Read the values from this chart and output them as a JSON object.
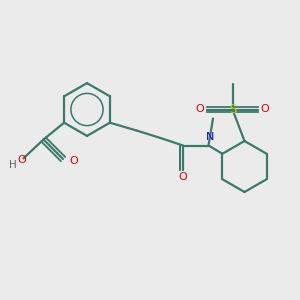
{
  "bg_color": "#ebebeb",
  "bond_color": "#3a7a6a",
  "bond_width": 1.6,
  "N_color": "#0000ee",
  "O_color": "#ee0000",
  "S_color": "#cccc00",
  "H_color": "#606060",
  "figsize": [
    3.0,
    3.0
  ],
  "dpi": 100,
  "xlim": [
    0,
    10
  ],
  "ylim": [
    0,
    10
  ]
}
